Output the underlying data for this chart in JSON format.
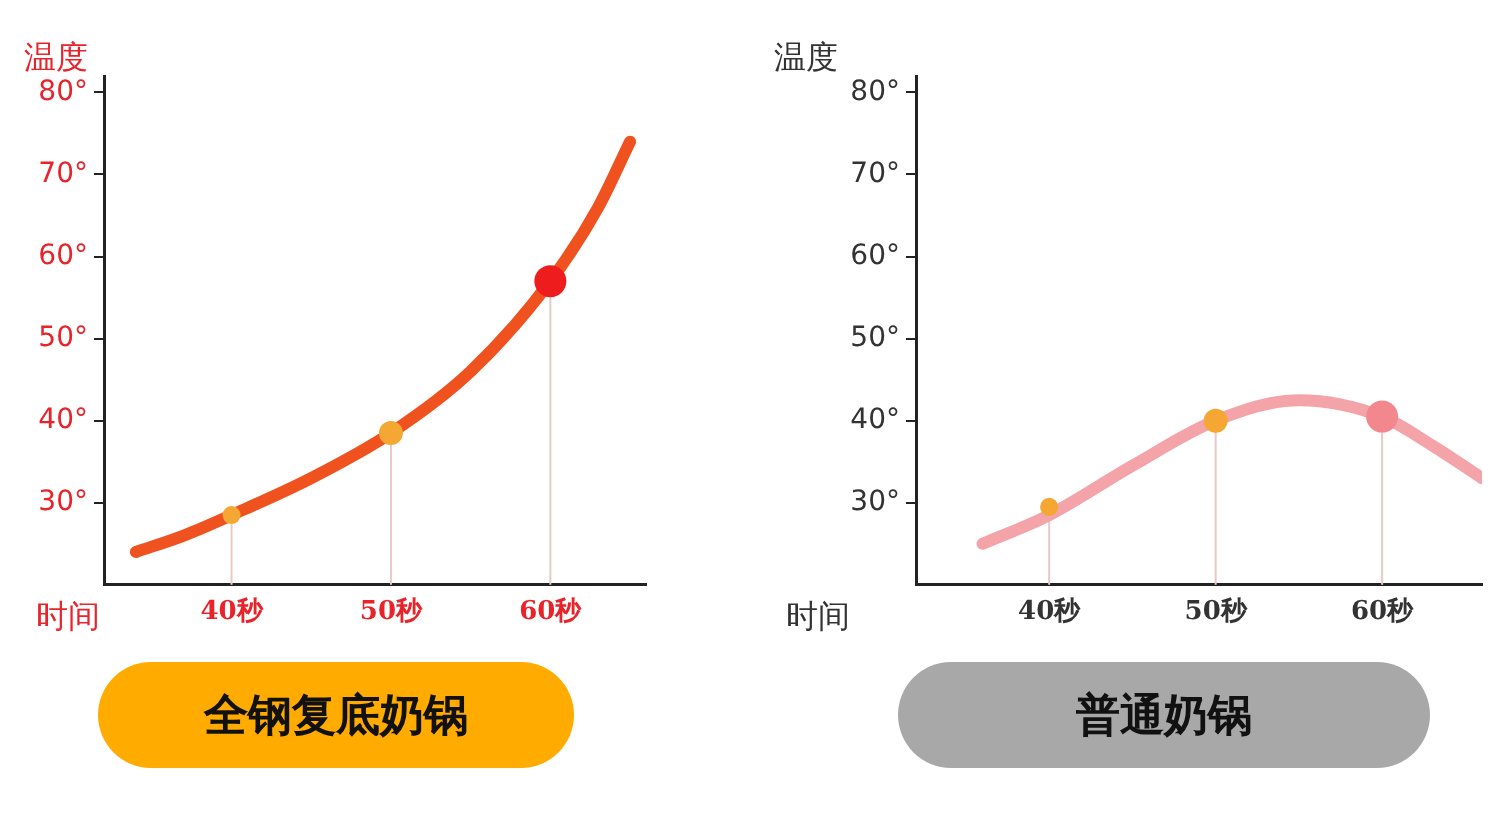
{
  "chart_data": [
    {
      "type": "line",
      "title": "全钢复底奶锅",
      "xlabel": "时间",
      "ylabel": "温度",
      "xlim": [
        32,
        66
      ],
      "ylim": [
        20,
        82
      ],
      "xticks": [
        {
          "value": 40,
          "label": "40秒"
        },
        {
          "value": 50,
          "label": "50秒"
        },
        {
          "value": 60,
          "label": "60秒"
        }
      ],
      "yticks": [
        {
          "value": 30,
          "label": "30°"
        },
        {
          "value": 40,
          "label": "40°"
        },
        {
          "value": 50,
          "label": "50°"
        },
        {
          "value": 60,
          "label": "60°"
        },
        {
          "value": 70,
          "label": "70°"
        },
        {
          "value": 80,
          "label": "80°"
        }
      ],
      "grid": false,
      "legend": false,
      "series": [
        {
          "color": "#f0521f",
          "marker": "none",
          "x": [
            34,
            37,
            40,
            45,
            50,
            55,
            60,
            63,
            65
          ],
          "values": [
            24,
            26,
            28.5,
            33,
            38.5,
            46,
            57,
            66,
            74
          ]
        },
        {
          "type": "lollipop",
          "colors": [
            "#f5a733",
            "#f5a733",
            "#ee1c1c"
          ],
          "marker": "circle",
          "x": [
            40,
            50,
            60
          ],
          "values": [
            28.5,
            38.5,
            57
          ],
          "sizes": [
            0.32,
            0.56,
            1
          ]
        }
      ]
    },
    {
      "type": "line",
      "title": "普通奶锅",
      "xlabel": "时间",
      "ylabel": "温度",
      "xlim": [
        32,
        66
      ],
      "ylim": [
        20,
        82
      ],
      "xticks": [
        {
          "value": 40,
          "label": "40秒"
        },
        {
          "value": 50,
          "label": "50秒"
        },
        {
          "value": 60,
          "label": "60秒"
        }
      ],
      "yticks": [
        {
          "value": 30,
          "label": "30°"
        },
        {
          "value": 40,
          "label": "40°"
        },
        {
          "value": 50,
          "label": "50°"
        },
        {
          "value": 60,
          "label": "60°"
        },
        {
          "value": 70,
          "label": "70°"
        },
        {
          "value": 80,
          "label": "80°"
        }
      ],
      "grid": false,
      "legend": false,
      "series": [
        {
          "color": "#f4a3a8",
          "marker": "none",
          "x": [
            36,
            40,
            45,
            50,
            55,
            60,
            63,
            66
          ],
          "values": [
            25,
            28.5,
            34.5,
            40,
            42.5,
            40.5,
            37,
            33
          ]
        },
        {
          "type": "lollipop",
          "colors": [
            "#f5a733",
            "#f5a733",
            "#f2888e"
          ],
          "marker": "circle",
          "x": [
            40,
            50,
            60
          ],
          "values": [
            29.5,
            40,
            40.5
          ],
          "sizes": [
            0.32,
            0.56,
            1
          ]
        }
      ]
    }
  ]
}
